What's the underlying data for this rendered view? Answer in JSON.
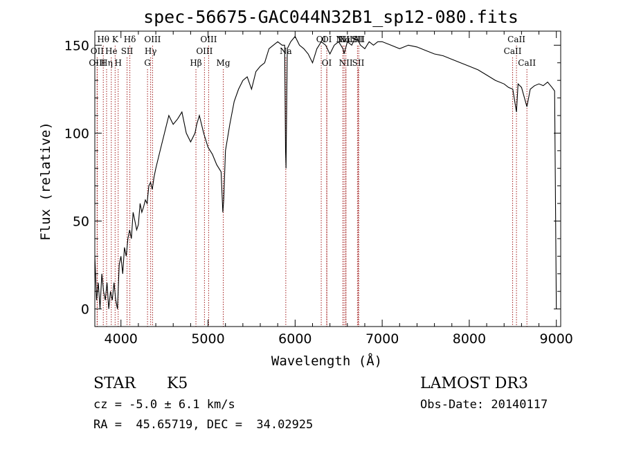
{
  "chart_data": {
    "type": "line",
    "title": "spec-56675-GAC044N32B1_sp12-080.fits",
    "xlabel": "Wavelength (Å)",
    "ylabel": "Flux (relative)",
    "xlim": [
      3700,
      9050
    ],
    "ylim": [
      -10,
      158
    ],
    "x_ticks": [
      4000,
      5000,
      6000,
      7000,
      8000,
      9000
    ],
    "y_ticks": [
      0,
      50,
      100,
      150
    ],
    "grid": false,
    "series": [
      {
        "color": "#000000",
        "x": [
          3700,
          3720,
          3740,
          3760,
          3780,
          3800,
          3820,
          3840,
          3860,
          3880,
          3900,
          3920,
          3940,
          3960,
          3980,
          4000,
          4020,
          4040,
          4060,
          4080,
          4100,
          4120,
          4140,
          4160,
          4180,
          4200,
          4220,
          4240,
          4260,
          4280,
          4300,
          4320,
          4340,
          4360,
          4380,
          4400,
          4450,
          4500,
          4550,
          4600,
          4650,
          4700,
          4750,
          4800,
          4850,
          4870,
          4900,
          4950,
          5000,
          5050,
          5100,
          5150,
          5170,
          5180,
          5200,
          5250,
          5300,
          5350,
          5400,
          5450,
          5500,
          5550,
          5600,
          5650,
          5700,
          5750,
          5800,
          5850,
          5880,
          5890,
          5896,
          5910,
          5950,
          6000,
          6050,
          6100,
          6150,
          6200,
          6250,
          6300,
          6350,
          6400,
          6450,
          6500,
          6550,
          6563,
          6600,
          6650,
          6700,
          6750,
          6800,
          6850,
          6900,
          6950,
          7000,
          7100,
          7200,
          7300,
          7400,
          7500,
          7600,
          7700,
          7800,
          7900,
          8000,
          8100,
          8200,
          8300,
          8400,
          8450,
          8500,
          8542,
          8560,
          8600,
          8662,
          8700,
          8750,
          8800,
          8850,
          8900,
          8950,
          8980,
          9000
        ],
        "y": [
          30,
          5,
          15,
          0,
          20,
          10,
          5,
          15,
          0,
          10,
          5,
          15,
          5,
          0,
          25,
          30,
          20,
          35,
          30,
          40,
          45,
          40,
          55,
          50,
          45,
          48,
          60,
          55,
          58,
          62,
          60,
          70,
          72,
          68,
          75,
          80,
          90,
          100,
          110,
          105,
          108,
          112,
          100,
          95,
          100,
          105,
          110,
          100,
          92,
          88,
          82,
          78,
          55,
          62,
          90,
          105,
          118,
          125,
          130,
          132,
          125,
          135,
          138,
          140,
          148,
          150,
          152,
          150,
          150,
          90,
          80,
          148,
          152,
          155,
          150,
          148,
          145,
          140,
          148,
          152,
          150,
          145,
          150,
          152,
          148,
          145,
          152,
          150,
          155,
          150,
          148,
          152,
          150,
          152,
          152,
          150,
          148,
          150,
          149,
          147,
          145,
          144,
          142,
          140,
          138,
          136,
          133,
          130,
          128,
          126,
          125,
          112,
          128,
          126,
          115,
          125,
          127,
          128,
          127,
          129,
          126,
          124,
          0
        ]
      }
    ],
    "lines": [
      {
        "name": "Hθ",
        "x": 3797,
        "row": 0
      },
      {
        "name": "K",
        "x": 3933,
        "row": 0
      },
      {
        "name": "Hδ",
        "x": 4102,
        "row": 0
      },
      {
        "name": "OIII",
        "x": 4363,
        "row": 0
      },
      {
        "name": "OIII",
        "x": 5007,
        "row": 0
      },
      {
        "name": "OI",
        "x": 6300,
        "row": 0
      },
      {
        "name": "OI",
        "x": 6364,
        "row": 0
      },
      {
        "name": "NII",
        "x": 6548,
        "row": 0
      },
      {
        "name": "Hα",
        "x": 6563,
        "row": 0
      },
      {
        "name": "NII",
        "x": 6583,
        "row": 0
      },
      {
        "name": "SII",
        "x": 6716,
        "row": 0
      },
      {
        "name": "SII",
        "x": 6731,
        "row": 0
      },
      {
        "name": "CaII",
        "x": 8542,
        "row": 0
      },
      {
        "name": "OII",
        "x": 3727,
        "row": 1
      },
      {
        "name": "He",
        "x": 3889,
        "row": 1
      },
      {
        "name": "SII",
        "x": 4070,
        "row": 1
      },
      {
        "name": "Hγ",
        "x": 4341,
        "row": 1
      },
      {
        "name": "OIII",
        "x": 4959,
        "row": 1
      },
      {
        "name": "Na",
        "x": 5893,
        "row": 1
      },
      {
        "name": "CaII",
        "x": 8498,
        "row": 1
      },
      {
        "name": "OIII",
        "x": 3727,
        "row": 2
      },
      {
        "name": "Hη",
        "x": 3835,
        "row": 2
      },
      {
        "name": "H",
        "x": 3968,
        "row": 2
      },
      {
        "name": "G",
        "x": 4305,
        "row": 2
      },
      {
        "name": "Hβ",
        "x": 4861,
        "row": 2
      },
      {
        "name": "Mg",
        "x": 5175,
        "row": 2
      },
      {
        "name": "OI",
        "x": 6363,
        "row": 2
      },
      {
        "name": "NII",
        "x": 6583,
        "row": 2
      },
      {
        "name": "SII",
        "x": 6725,
        "row": 2
      },
      {
        "name": "CaII",
        "x": 8662,
        "row": 2
      }
    ]
  },
  "info": {
    "class": "STAR",
    "subclass": "K5",
    "survey": "LAMOST DR3",
    "cz": "cz = -5.0 ± 6.1 km/s",
    "obs_date": "Obs-Date: 20140117",
    "radec": "RA =  45.65719, DEC =  34.02925"
  }
}
